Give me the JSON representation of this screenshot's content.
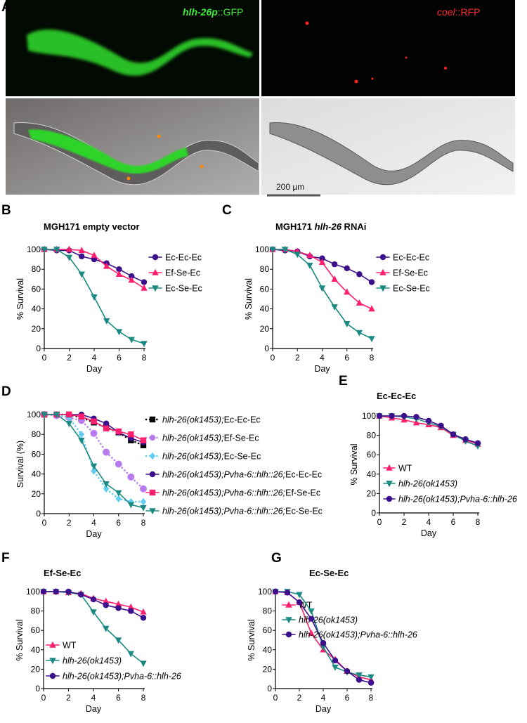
{
  "panel_a": {
    "label": "A",
    "gfp_label_italic": "hlh-26p",
    "gfp_label_rest": "::GFP",
    "rfp_label_italic": "coel",
    "rfp_label_rest": "::RFP",
    "scale_bar": "200 µm"
  },
  "colors": {
    "purple": "#3c0f8c",
    "pink": "#ff1f6e",
    "teal": "#1a8a82",
    "lilac": "#b97cf0",
    "cyan": "#62cdf2",
    "black": "#000000"
  },
  "chart_data": [
    {
      "id": "B",
      "label": "B",
      "type": "line",
      "title": "MGH171 empty vector",
      "title_italic": "",
      "xlabel": "Day",
      "ylabel": "% Survival",
      "xlim": [
        0,
        8
      ],
      "ylim": [
        0,
        100
      ],
      "xticks": [
        "0",
        "2",
        "4",
        "6",
        "8"
      ],
      "yticks": [
        "0",
        "20",
        "40",
        "60",
        "80",
        "100"
      ],
      "x": [
        0,
        1,
        2,
        3,
        4,
        5,
        6,
        7,
        8
      ],
      "legend_placement": "right",
      "series": [
        {
          "name": "Ec-Ec-Ec",
          "color": "#3c0f8c",
          "marker": "circle",
          "dash": false,
          "values": [
            100,
            99,
            99,
            93,
            90,
            86,
            80,
            73,
            67
          ]
        },
        {
          "name": "Ef-Se-Ec",
          "color": "#ff1f6e",
          "marker": "triangle-up",
          "dash": false,
          "values": [
            100,
            100,
            100,
            99,
            94,
            83,
            75,
            69,
            61
          ]
        },
        {
          "name": "Ec-Se-Ec",
          "color": "#1a8a82",
          "marker": "triangle-down",
          "dash": false,
          "values": [
            100,
            100,
            92,
            75,
            52,
            28,
            17,
            9,
            5
          ]
        }
      ]
    },
    {
      "id": "C",
      "label": "C",
      "type": "line",
      "title": "MGH171 ",
      "title_italic": "hlh-26",
      "title_after": " RNAi",
      "xlabel": "Day",
      "ylabel": "% Survival",
      "xlim": [
        0,
        8
      ],
      "ylim": [
        0,
        100
      ],
      "xticks": [
        "0",
        "2",
        "4",
        "6",
        "8"
      ],
      "yticks": [
        "0",
        "20",
        "40",
        "60",
        "80",
        "100"
      ],
      "x": [
        0,
        1,
        2,
        3,
        4,
        5,
        6,
        7,
        8
      ],
      "legend_placement": "right",
      "series": [
        {
          "name": "Ec-Ec-Ec",
          "color": "#3c0f8c",
          "marker": "circle",
          "dash": false,
          "values": [
            100,
            99,
            98,
            93,
            91,
            85,
            81,
            75,
            67
          ]
        },
        {
          "name": "Ef-Se-Ec",
          "color": "#ff1f6e",
          "marker": "triangle-up",
          "dash": false,
          "values": [
            100,
            100,
            98,
            94,
            87,
            70,
            57,
            46,
            40
          ]
        },
        {
          "name": "Ec-Se-Ec",
          "color": "#1a8a82",
          "marker": "triangle-down",
          "dash": false,
          "values": [
            100,
            100,
            95,
            84,
            61,
            42,
            25,
            16,
            10
          ]
        }
      ]
    },
    {
      "id": "D",
      "label": "D",
      "type": "line",
      "title": "",
      "xlabel": "Day",
      "ylabel": "Survival (%)",
      "xlim": [
        0,
        8
      ],
      "ylim": [
        0,
        100
      ],
      "xticks": [
        "0",
        "2",
        "4",
        "6",
        "8"
      ],
      "yticks": [
        "0",
        "20",
        "40",
        "60",
        "80",
        "100"
      ],
      "x": [
        0,
        1,
        2,
        3,
        4,
        5,
        6,
        7,
        8
      ],
      "legend_placement": "right",
      "series": [
        {
          "name": "Ec-Ec-Ec",
          "italic_prefix": "hlh-26(ok1453);",
          "color": "#000000",
          "marker": "square",
          "dash": true,
          "values": [
            100,
            100,
            100,
            97,
            92,
            87,
            82,
            74,
            69
          ]
        },
        {
          "name": "Ef-Se-Ec",
          "italic_prefix": "hlh-26(ok1453);",
          "color": "#b97cf0",
          "marker": "circle",
          "dash": true,
          "values": [
            100,
            99,
            97,
            94,
            81,
            62,
            50,
            37,
            25
          ]
        },
        {
          "name": "Ec-Se-Ec",
          "italic_prefix": "hlh-26(ok1453);",
          "color": "#62cdf2",
          "marker": "diamond",
          "dash": true,
          "values": [
            100,
            100,
            97,
            80,
            43,
            25,
            15,
            12,
            12
          ]
        },
        {
          "name": "Ec-Ec-Ec",
          "italic_prefix": "hlh-26(ok1453);Pvha-6::hlh::26;",
          "color": "#3c0f8c",
          "marker": "circle",
          "dash": false,
          "values": [
            100,
            100,
            100,
            100,
            96,
            91,
            82,
            76,
            72
          ]
        },
        {
          "name": "Ef-Se-Ec",
          "italic_prefix": "hlh-26(ok1453);Pvha-6::hlh::26;",
          "color": "#ff1f6e",
          "marker": "square",
          "dash": false,
          "values": [
            100,
            100,
            100,
            98,
            93,
            86,
            83,
            80,
            74
          ]
        },
        {
          "name": "Ec-Se-Ec",
          "italic_prefix": "hlh-26(ok1453);Pvha-6::hlh::26;",
          "color": "#1a8a82",
          "marker": "triangle-down",
          "dash": false,
          "values": [
            100,
            100,
            91,
            74,
            48,
            30,
            21,
            9,
            6
          ]
        }
      ]
    },
    {
      "id": "E",
      "label": "E",
      "type": "line",
      "title": "Ec-Ec-Ec",
      "xlabel": "Day",
      "ylabel": "% Survival",
      "xlim": [
        0,
        8
      ],
      "ylim": [
        0,
        100
      ],
      "xticks": [
        "0",
        "2",
        "4",
        "6",
        "8"
      ],
      "yticks": [
        "0",
        "20",
        "40",
        "60",
        "80",
        "100"
      ],
      "x": [
        0,
        1,
        2,
        3,
        4,
        5,
        6,
        7,
        8
      ],
      "legend_placement": "bottom-left",
      "series": [
        {
          "name": "WT",
          "color": "#ff1f6e",
          "marker": "triangle-up",
          "dash": false,
          "italic": false,
          "values": [
            100,
            98,
            96,
            93,
            91,
            88,
            80,
            75,
            71
          ]
        },
        {
          "name": "hlh-26(ok1453)",
          "color": "#1a8a82",
          "marker": "triangle-down",
          "dash": false,
          "italic": true,
          "values": [
            100,
            100,
            99,
            97,
            93,
            89,
            81,
            74,
            69
          ]
        },
        {
          "name": "hlh-26(ok1453);Pvha-6::hlh-26",
          "color": "#3c0f8c",
          "marker": "circle",
          "dash": false,
          "italic": true,
          "values": [
            100,
            100,
            100,
            99,
            95,
            90,
            81,
            76,
            72
          ]
        }
      ]
    },
    {
      "id": "F",
      "label": "F",
      "type": "line",
      "title": "Ef-Se-Ec",
      "xlabel": "Day",
      "ylabel": "% Survival",
      "xlim": [
        0,
        8
      ],
      "ylim": [
        0,
        100
      ],
      "xticks": [
        "0",
        "2",
        "4",
        "6",
        "8"
      ],
      "yticks": [
        "0",
        "20",
        "40",
        "60",
        "80",
        "100"
      ],
      "x": [
        0,
        1,
        2,
        3,
        4,
        5,
        6,
        7,
        8
      ],
      "legend_placement": "bottom-left",
      "series": [
        {
          "name": "WT",
          "color": "#ff1f6e",
          "marker": "triangle-up",
          "dash": false,
          "italic": false,
          "values": [
            100,
            100,
            99,
            98,
            93,
            90,
            87,
            84,
            79
          ]
        },
        {
          "name": "hlh-26(ok1453)",
          "color": "#1a8a82",
          "marker": "triangle-down",
          "dash": false,
          "italic": true,
          "values": [
            100,
            100,
            99,
            97,
            79,
            62,
            50,
            36,
            26
          ]
        },
        {
          "name": "hlh-26(ok1453);Pvha-6::hlh-26",
          "color": "#3c0f8c",
          "marker": "circle",
          "dash": false,
          "italic": true,
          "values": [
            100,
            100,
            100,
            97,
            92,
            86,
            83,
            80,
            73
          ]
        }
      ]
    },
    {
      "id": "G",
      "label": "G",
      "type": "line",
      "title": "Ec-Se-Ec",
      "xlabel": "Day",
      "ylabel": "% Survival",
      "xlim": [
        0,
        8
      ],
      "ylim": [
        0,
        100
      ],
      "xticks": [
        "0",
        "2",
        "4",
        "6",
        "8"
      ],
      "yticks": [
        "0",
        "20",
        "40",
        "60",
        "80",
        "100"
      ],
      "x": [
        0,
        1,
        2,
        3,
        4,
        5,
        6,
        7,
        8
      ],
      "legend_placement": "top-right",
      "series": [
        {
          "name": "WT",
          "color": "#ff1f6e",
          "marker": "triangle-up",
          "dash": false,
          "italic": false,
          "values": [
            100,
            99,
            89,
            57,
            40,
            30,
            18,
            12,
            9
          ]
        },
        {
          "name": "hlh-26(ok1453)",
          "color": "#1a8a82",
          "marker": "triangle-down",
          "dash": false,
          "italic": true,
          "values": [
            100,
            100,
            97,
            80,
            43,
            22,
            17,
            14,
            12
          ]
        },
        {
          "name": "hlh-26(ok1453);Pvha-6::hlh-26",
          "color": "#3c0f8c",
          "marker": "circle",
          "dash": false,
          "italic": true,
          "values": [
            100,
            99,
            89,
            72,
            47,
            29,
            18,
            9,
            6
          ]
        }
      ]
    }
  ]
}
